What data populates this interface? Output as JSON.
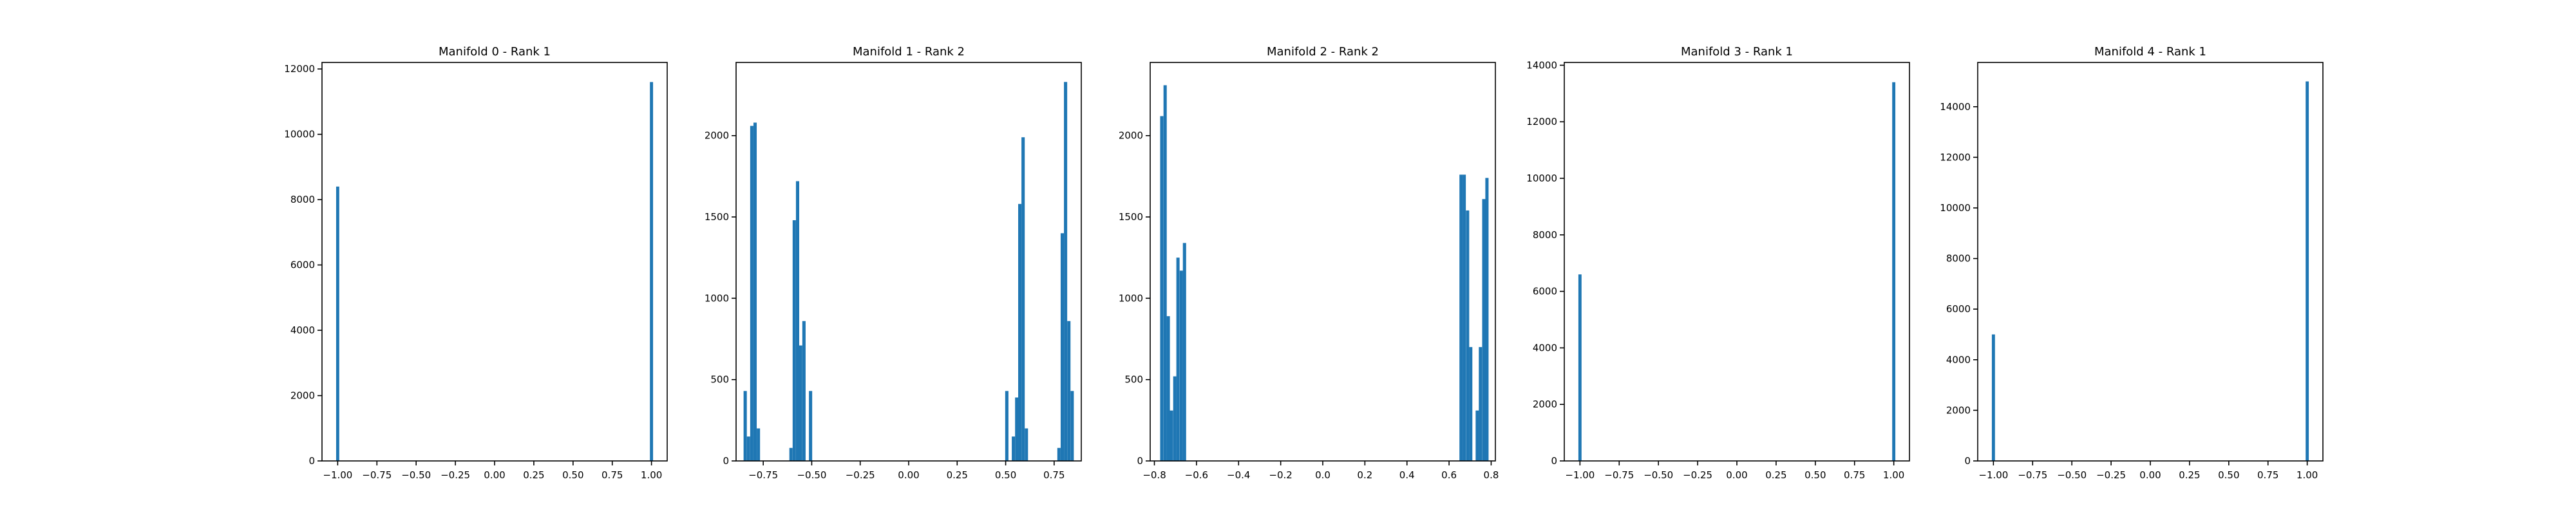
{
  "figure": {
    "background": "#ffffff",
    "bar_color": "#1f77b4"
  },
  "chart_data": [
    {
      "type": "bar",
      "title": "Manifold 0 - Rank 1",
      "xlim": [
        -1.1,
        1.1
      ],
      "ylim": [
        0,
        12200
      ],
      "xticks": [
        -1.0,
        -0.75,
        -0.5,
        -0.25,
        0.0,
        0.25,
        0.5,
        0.75,
        1.0
      ],
      "xtick_labels": [
        "−1.00",
        "−0.75",
        "−0.50",
        "−0.25",
        "0.00",
        "0.25",
        "0.50",
        "0.75",
        "1.00"
      ],
      "yticks": [
        0,
        2000,
        4000,
        6000,
        8000,
        10000,
        12000
      ],
      "ytick_labels": [
        "0",
        "2000",
        "4000",
        "6000",
        "8000",
        "10000",
        "12000"
      ],
      "bin_width": 0.02,
      "bins": [
        {
          "x": -1.0,
          "count": 8400
        },
        {
          "x": 1.0,
          "count": 11600
        }
      ]
    },
    {
      "type": "bar",
      "title": "Manifold 1 - Rank 2",
      "xlim": [
        -0.89,
        0.89
      ],
      "ylim": [
        0,
        2450
      ],
      "xticks": [
        -0.75,
        -0.5,
        -0.25,
        0.0,
        0.25,
        0.5,
        0.75
      ],
      "xtick_labels": [
        "−0.75",
        "−0.50",
        "−0.25",
        "0.00",
        "0.25",
        "0.50",
        "0.75"
      ],
      "yticks": [
        0,
        500,
        1000,
        1500,
        2000
      ],
      "ytick_labels": [
        "0",
        "500",
        "1000",
        "1500",
        "2000"
      ],
      "bin_width": 0.0168,
      "bins": [
        {
          "x": -0.843,
          "count": 430
        },
        {
          "x": -0.826,
          "count": 150
        },
        {
          "x": -0.809,
          "count": 2060
        },
        {
          "x": -0.792,
          "count": 2080
        },
        {
          "x": -0.775,
          "count": 200
        },
        {
          "x": -0.607,
          "count": 80
        },
        {
          "x": -0.59,
          "count": 1480
        },
        {
          "x": -0.573,
          "count": 1720
        },
        {
          "x": -0.557,
          "count": 710
        },
        {
          "x": -0.54,
          "count": 860
        },
        {
          "x": -0.506,
          "count": 430
        },
        {
          "x": 0.506,
          "count": 430
        },
        {
          "x": 0.54,
          "count": 150
        },
        {
          "x": 0.557,
          "count": 390
        },
        {
          "x": 0.573,
          "count": 1580
        },
        {
          "x": 0.59,
          "count": 1990
        },
        {
          "x": 0.607,
          "count": 200
        },
        {
          "x": 0.775,
          "count": 80
        },
        {
          "x": 0.792,
          "count": 1400
        },
        {
          "x": 0.809,
          "count": 2330
        },
        {
          "x": 0.826,
          "count": 860
        },
        {
          "x": 0.843,
          "count": 430
        }
      ]
    },
    {
      "type": "bar",
      "title": "Manifold 2 - Rank 2",
      "xlim": [
        -0.82,
        0.82
      ],
      "ylim": [
        0,
        2450
      ],
      "xticks": [
        -0.8,
        -0.6,
        -0.4,
        -0.2,
        0.0,
        0.2,
        0.4,
        0.6,
        0.8
      ],
      "xtick_labels": [
        "−0.8",
        "−0.6",
        "−0.4",
        "−0.2",
        "0.0",
        "0.2",
        "0.4",
        "0.6",
        "0.8"
      ],
      "yticks": [
        0,
        500,
        1000,
        1500,
        2000
      ],
      "ytick_labels": [
        "0",
        "500",
        "1000",
        "1500",
        "2000"
      ],
      "bin_width": 0.0154,
      "bins": [
        {
          "x": -0.765,
          "count": 2120
        },
        {
          "x": -0.749,
          "count": 2310
        },
        {
          "x": -0.734,
          "count": 890
        },
        {
          "x": -0.719,
          "count": 310
        },
        {
          "x": -0.703,
          "count": 520
        },
        {
          "x": -0.688,
          "count": 1250
        },
        {
          "x": -0.672,
          "count": 1170
        },
        {
          "x": -0.657,
          "count": 1340
        },
        {
          "x": 0.657,
          "count": 1760
        },
        {
          "x": 0.672,
          "count": 1760
        },
        {
          "x": 0.688,
          "count": 1540
        },
        {
          "x": 0.703,
          "count": 700
        },
        {
          "x": 0.734,
          "count": 310
        },
        {
          "x": 0.749,
          "count": 700
        },
        {
          "x": 0.765,
          "count": 1610
        },
        {
          "x": 0.78,
          "count": 1740
        }
      ]
    },
    {
      "type": "bar",
      "title": "Manifold 3 - Rank 1",
      "xlim": [
        -1.1,
        1.1
      ],
      "ylim": [
        0,
        14100
      ],
      "xticks": [
        -1.0,
        -0.75,
        -0.5,
        -0.25,
        0.0,
        0.25,
        0.5,
        0.75,
        1.0
      ],
      "xtick_labels": [
        "−1.00",
        "−0.75",
        "−0.50",
        "−0.25",
        "0.00",
        "0.25",
        "0.50",
        "0.75",
        "1.00"
      ],
      "yticks": [
        0,
        2000,
        4000,
        6000,
        8000,
        10000,
        12000,
        14000
      ],
      "ytick_labels": [
        "0",
        "2000",
        "4000",
        "6000",
        "8000",
        "10000",
        "12000",
        "14000"
      ],
      "bin_width": 0.02,
      "bins": [
        {
          "x": -1.0,
          "count": 6600
        },
        {
          "x": 1.0,
          "count": 13400
        }
      ]
    },
    {
      "type": "bar",
      "title": "Manifold 4 - Rank 1",
      "xlim": [
        -1.1,
        1.1
      ],
      "ylim": [
        0,
        15750
      ],
      "xticks": [
        -1.0,
        -0.75,
        -0.5,
        -0.25,
        0.0,
        0.25,
        0.5,
        0.75,
        1.0
      ],
      "xtick_labels": [
        "−1.00",
        "−0.75",
        "−0.50",
        "−0.25",
        "0.00",
        "0.25",
        "0.50",
        "0.75",
        "1.00"
      ],
      "yticks": [
        0,
        2000,
        4000,
        6000,
        8000,
        10000,
        12000,
        14000
      ],
      "ytick_labels": [
        "0",
        "2000",
        "4000",
        "6000",
        "8000",
        "10000",
        "12000",
        "14000"
      ],
      "bin_width": 0.02,
      "bins": [
        {
          "x": -1.0,
          "count": 5000
        },
        {
          "x": 1.0,
          "count": 15000
        }
      ]
    }
  ]
}
